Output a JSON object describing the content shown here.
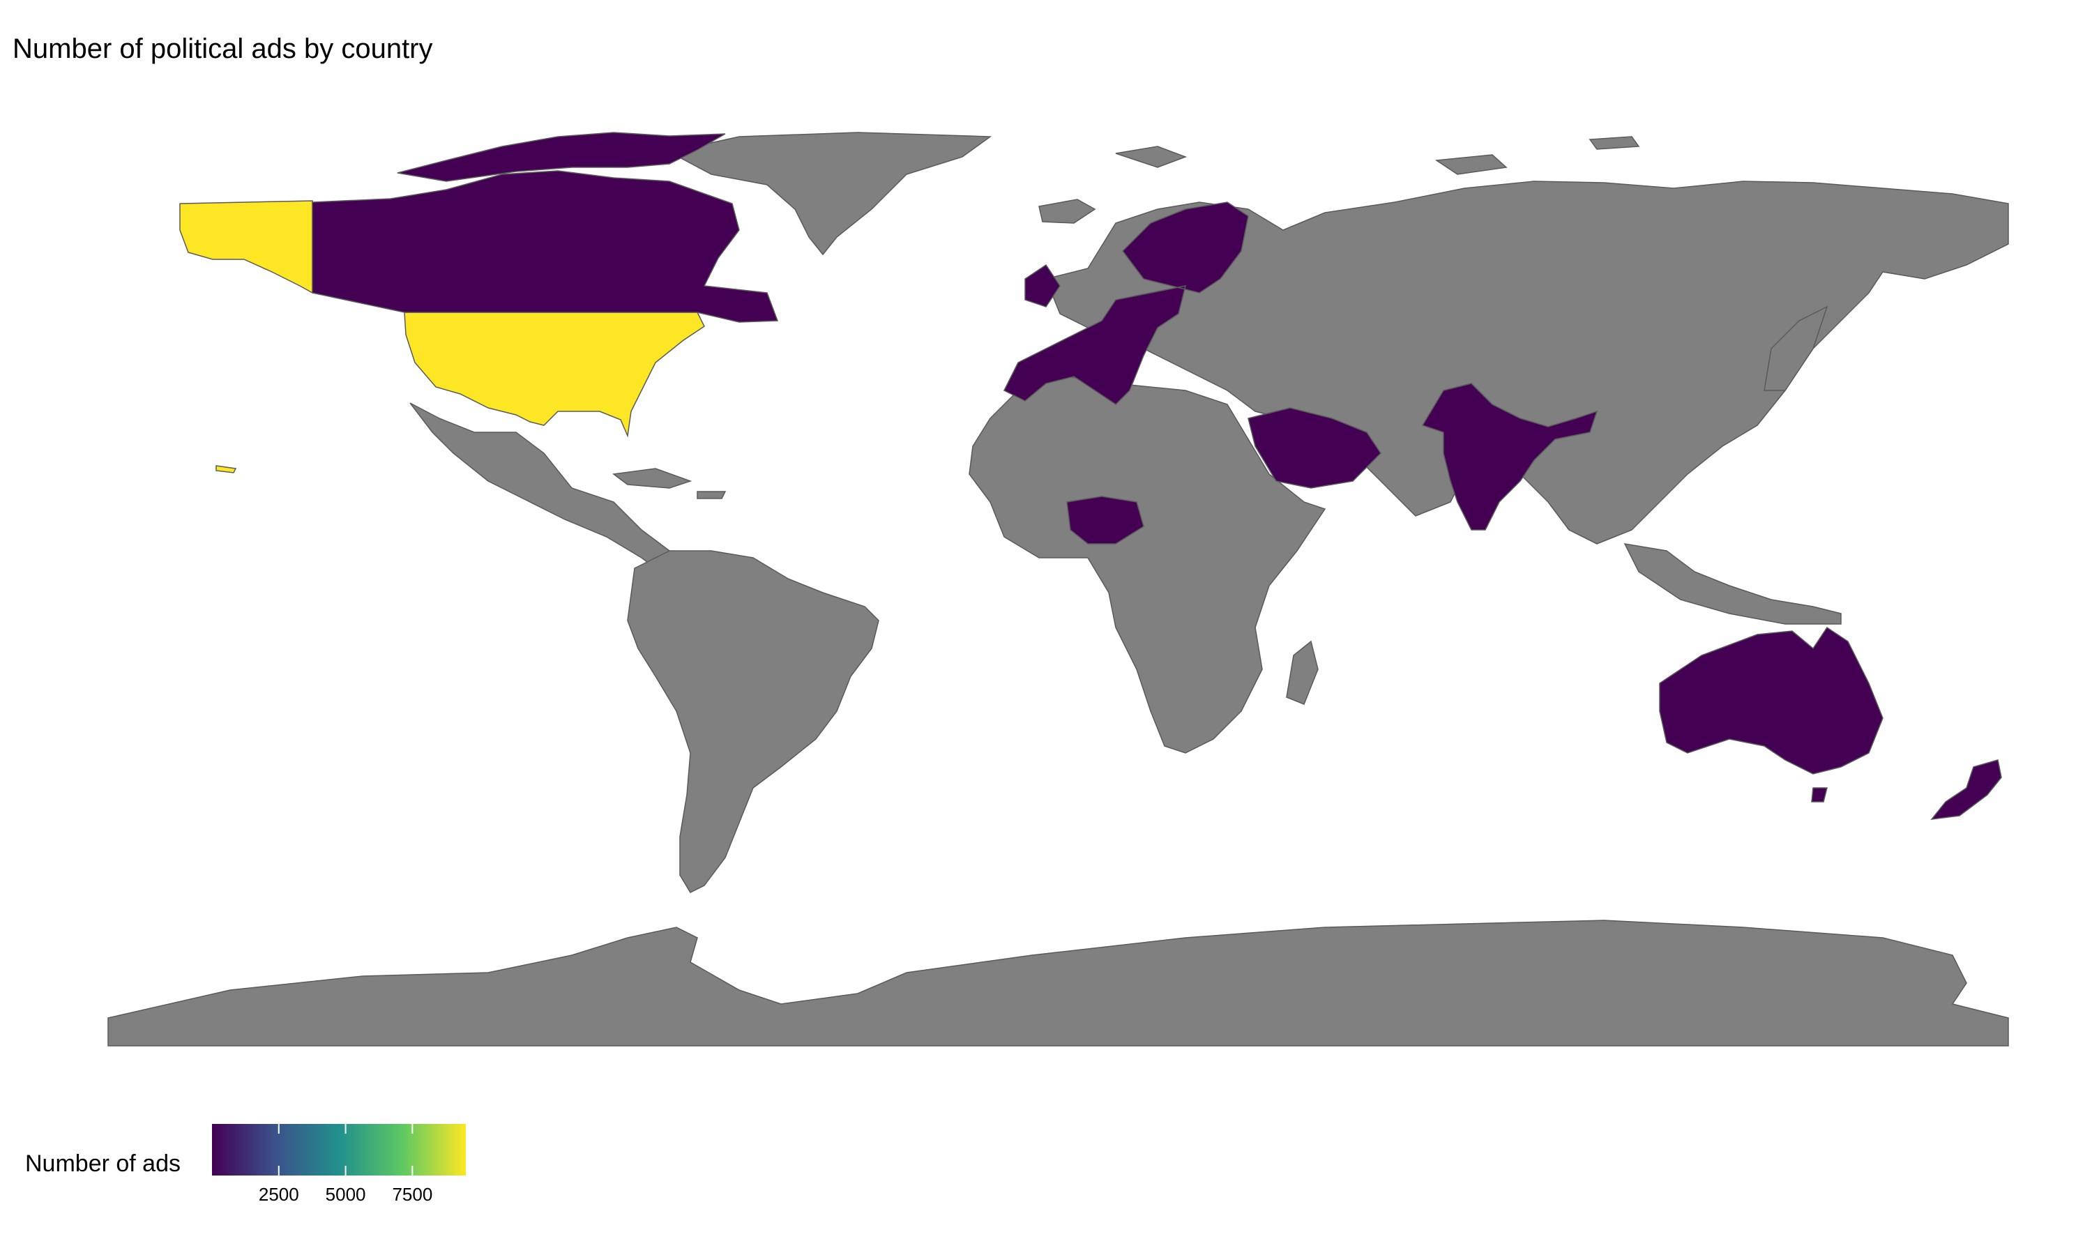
{
  "title": "Number of political ads by country",
  "legend": {
    "title": "Number of ads",
    "ticks": [
      2500,
      5000,
      7500
    ],
    "range": [
      0,
      9500
    ],
    "palette": [
      "#440154",
      "#3b528b",
      "#21908c",
      "#5dc863",
      "#fde725"
    ]
  },
  "colors": {
    "land": "#808080",
    "border": "#5a5a5a",
    "ocean": "#ffffff"
  },
  "map_data": {
    "type": "choropleth",
    "highlighted": [
      {
        "name": "United States",
        "fill": "#fde725"
      },
      {
        "name": "Canada",
        "fill": "#440154"
      },
      {
        "name": "Europe (EU / UK / Nordics)",
        "fill": "#440154"
      },
      {
        "name": "Saudi Arabia",
        "fill": "#440154"
      },
      {
        "name": "India",
        "fill": "#440154"
      },
      {
        "name": "Nigeria",
        "fill": "#440154"
      },
      {
        "name": "Australia",
        "fill": "#440154"
      },
      {
        "name": "New Zealand",
        "fill": "#440154"
      }
    ]
  }
}
